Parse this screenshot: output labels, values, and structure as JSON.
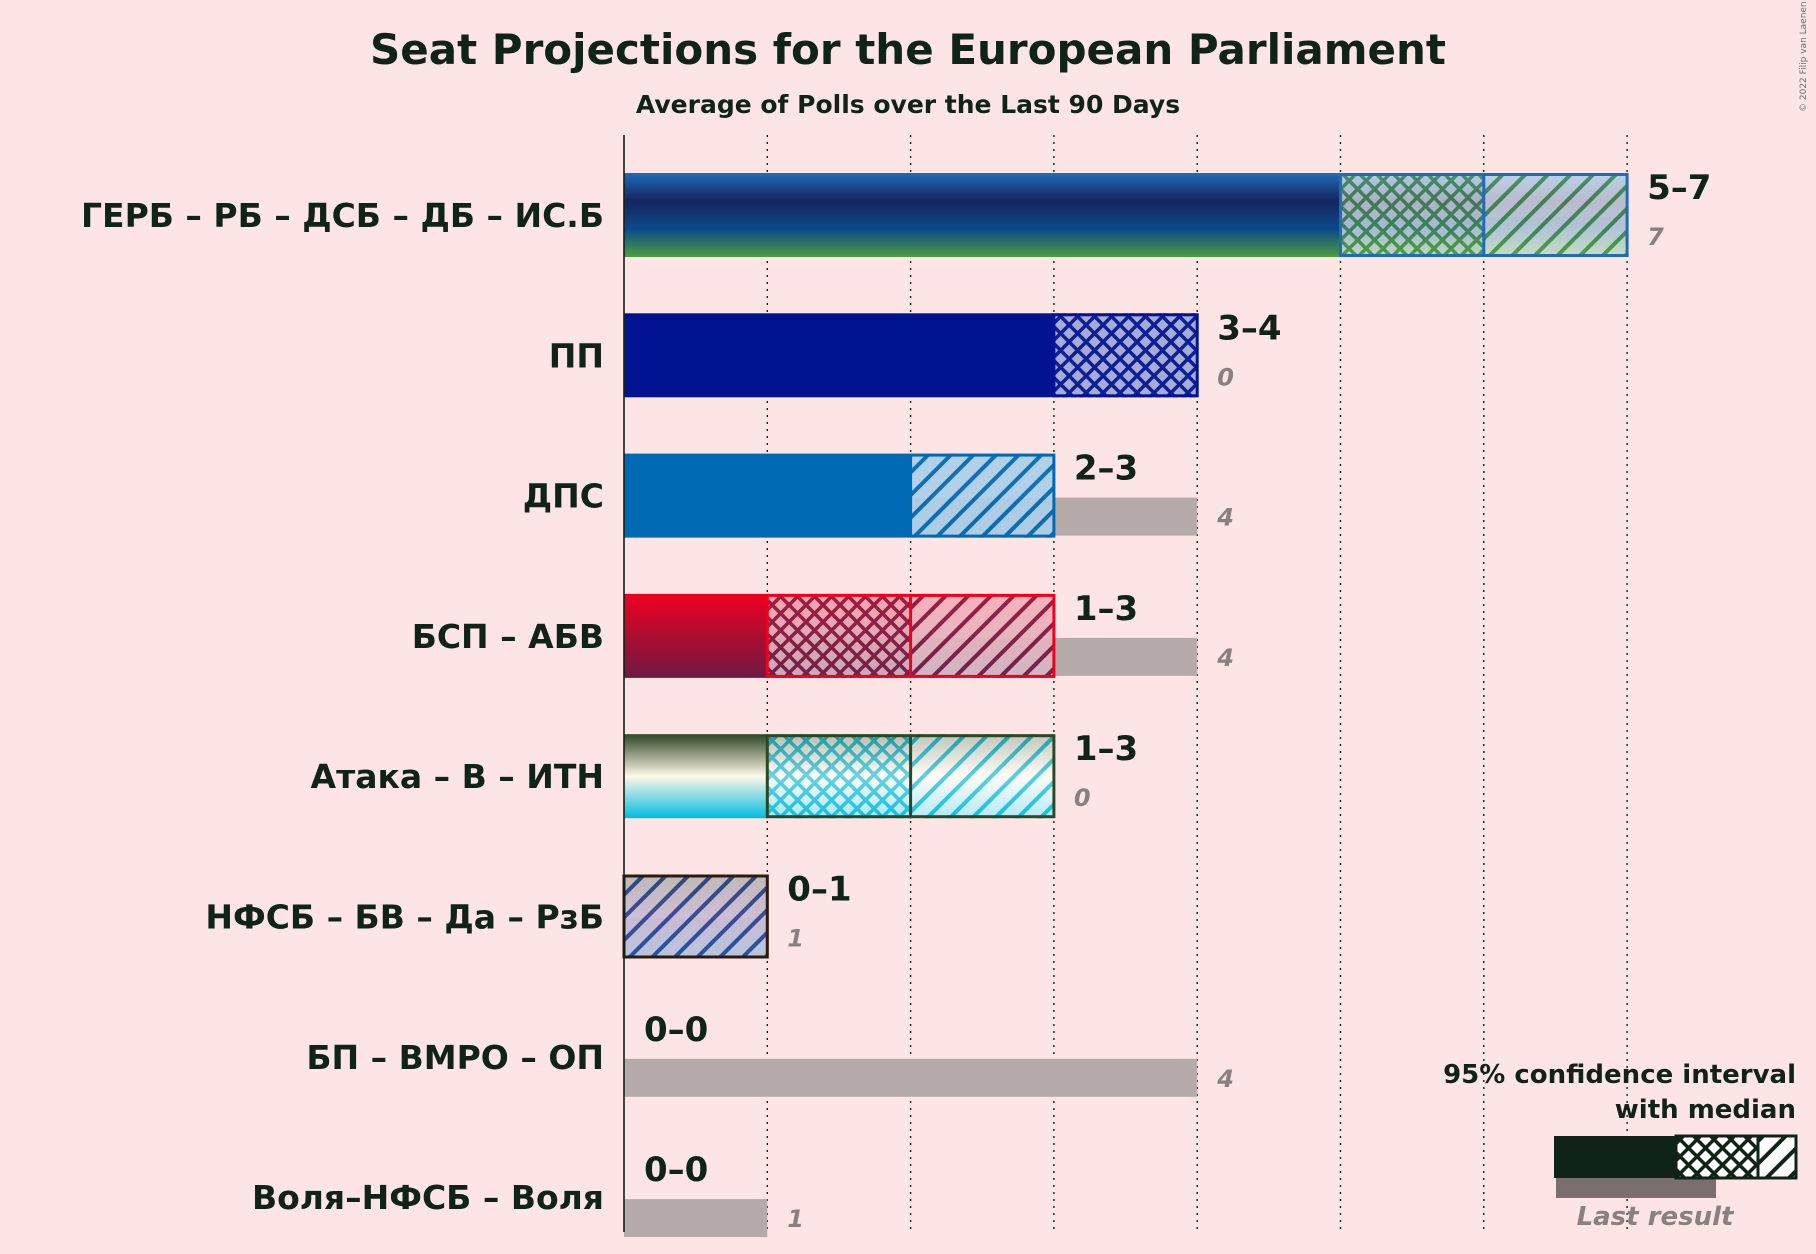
{
  "chart_data": {
    "type": "bar",
    "title": "Seat Projections for the European Parliament",
    "subtitle": "Average of Polls over the Last 90 Days",
    "copyright": "© 2022 Filip van Laenen",
    "xlim": [
      0,
      7
    ],
    "grid": true,
    "legend": {
      "position": "bottom-right",
      "line1": "95% confidence interval",
      "line2": "with median",
      "last_result_label": "Last result"
    },
    "parties": [
      {
        "name": "ГЕРБ – РБ – ДСБ – ДБ – ИС.Б",
        "low": 5,
        "median": 6,
        "high": 7,
        "range_label": "5–7",
        "last": 7,
        "last_label": "7",
        "colors": [
          "#1e6bb8",
          "#15245e",
          "#0b4a8a",
          "#4e9e3f"
        ]
      },
      {
        "name": "ПП",
        "low": 3,
        "median": 4,
        "high": 4,
        "range_label": "3–4",
        "last": 0,
        "last_label": "0",
        "colors": [
          "#001492"
        ]
      },
      {
        "name": "ДПС",
        "low": 2,
        "median": 2,
        "high": 3,
        "range_label": "2–3",
        "last": 4,
        "last_label": "4",
        "colors": [
          "#0069b4"
        ]
      },
      {
        "name": "БСП – АБВ",
        "low": 1,
        "median": 2,
        "high": 3,
        "range_label": "1–3",
        "last": 4,
        "last_label": "4",
        "colors": [
          "#ee0021",
          "#6d1a43"
        ]
      },
      {
        "name": "Атака – В – ИТН",
        "low": 1,
        "median": 2,
        "high": 3,
        "range_label": "1–3",
        "last": 0,
        "last_label": "0",
        "colors": [
          "#2d4624",
          "#fff8e8",
          "#00bde0"
        ]
      },
      {
        "name": "НФСБ – БВ – Да – РзБ",
        "low": 0,
        "median": 0,
        "high": 1,
        "range_label": "0–1",
        "last": 1,
        "last_label": "1",
        "colors": [
          "#2a1a10",
          "#5a2b7a",
          "#1e4fa0"
        ]
      },
      {
        "name": "БП – ВМРО – ОП",
        "low": 0,
        "median": 0,
        "high": 0,
        "range_label": "0–0",
        "last": 4,
        "last_label": "4",
        "colors": [
          "#0f2317"
        ]
      },
      {
        "name": "Воля–НФСБ – Воля",
        "low": 0,
        "median": 0,
        "high": 0,
        "range_label": "0–0",
        "last": 1,
        "last_label": "1",
        "colors": [
          "#0f2317"
        ]
      }
    ]
  }
}
